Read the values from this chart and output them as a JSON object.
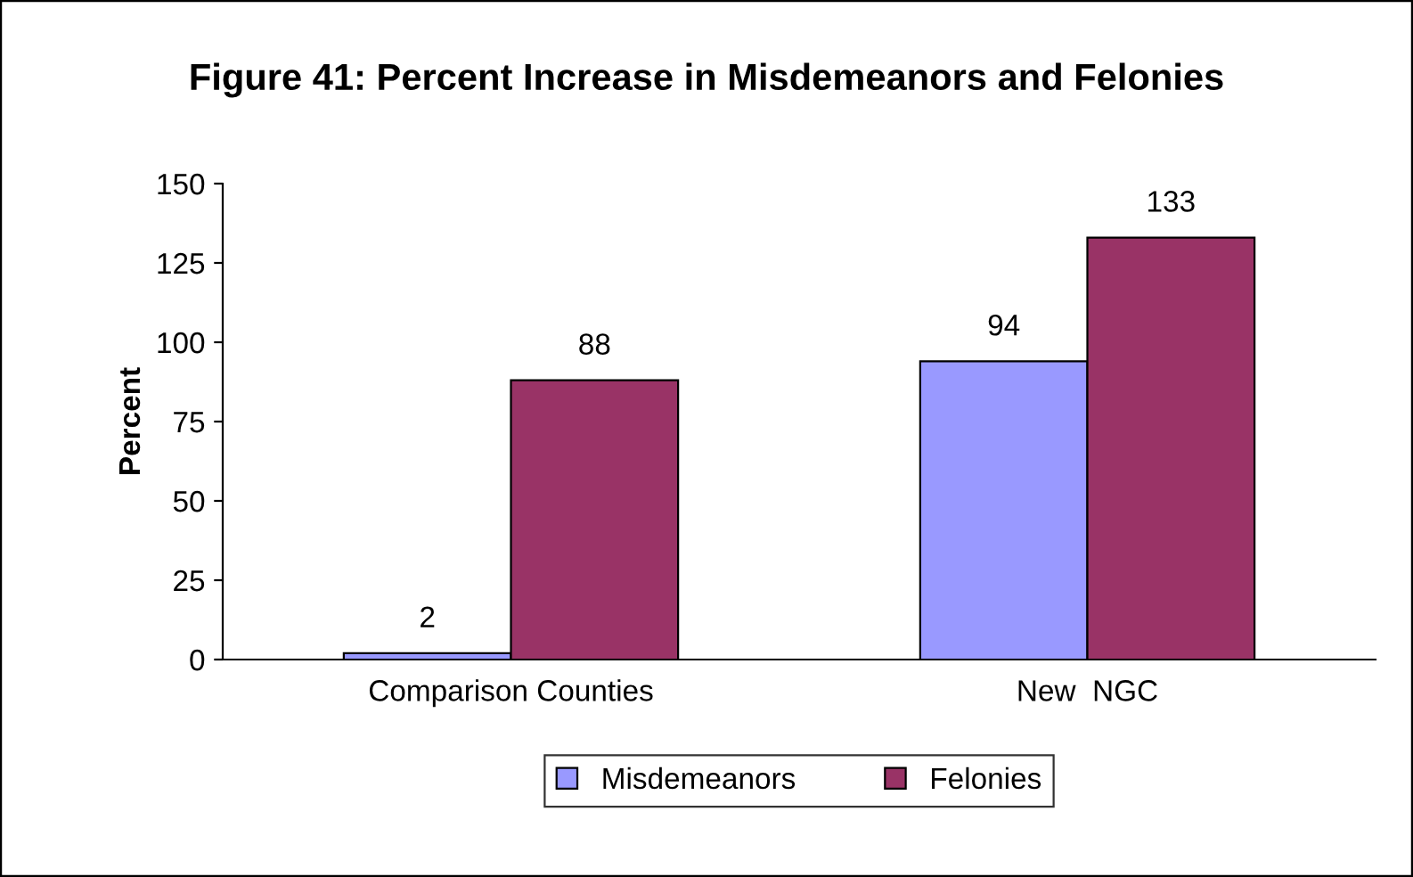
{
  "chart_data": {
    "type": "bar",
    "title": "Figure 41: Percent Increase in Misdemeanors and Felonies",
    "ylabel": "Percent",
    "categories": [
      "Comparison Counties",
      "New  NGC"
    ],
    "series": [
      {
        "name": "Misdemeanors",
        "color": "#9999ff",
        "values": [
          2,
          94
        ]
      },
      {
        "name": "Felonies",
        "color": "#993366",
        "values": [
          88,
          133
        ]
      }
    ],
    "ylim": [
      0,
      150
    ],
    "yticks": [
      0,
      25,
      50,
      75,
      100,
      125,
      150
    ],
    "grid": false,
    "legend": "bottom",
    "data_labels": true
  }
}
